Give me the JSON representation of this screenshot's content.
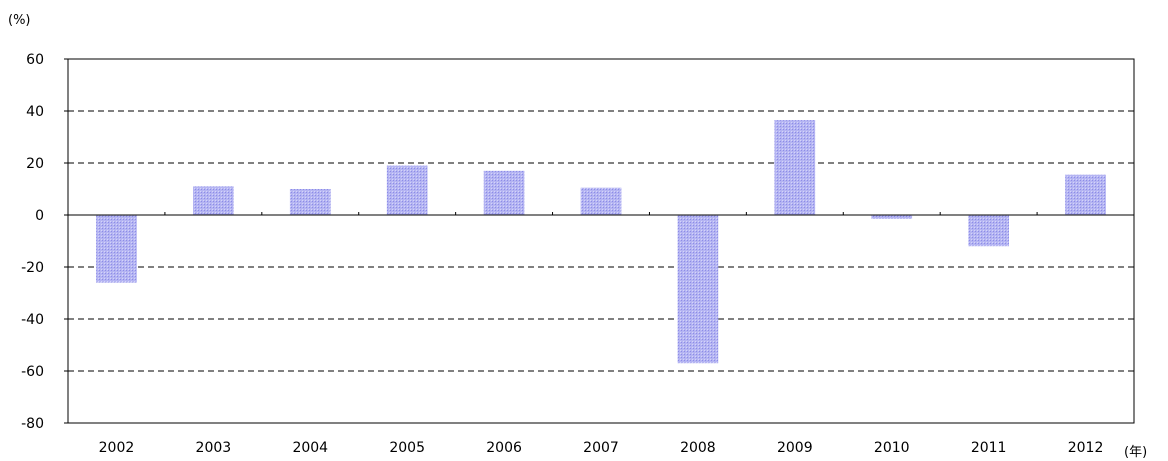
{
  "chart_data": {
    "type": "bar",
    "y_unit_label": "(%)",
    "x_unit_label": "(年)",
    "categories": [
      "2002",
      "2003",
      "2004",
      "2005",
      "2006",
      "2007",
      "2008",
      "2009",
      "2010",
      "2011",
      "2012"
    ],
    "series": [
      {
        "values": [
          -26,
          11,
          10,
          19,
          17,
          10.5,
          -57,
          36.5,
          -1.5,
          -12,
          15.5
        ]
      }
    ],
    "ylim": [
      -80,
      60
    ],
    "yticks": [
      60,
      40,
      20,
      0,
      -20,
      -40,
      -60,
      -80
    ],
    "grid": "dashed horizontal",
    "bar_color": "#a8a8f0",
    "bar_edge_color": "#8080e0"
  }
}
